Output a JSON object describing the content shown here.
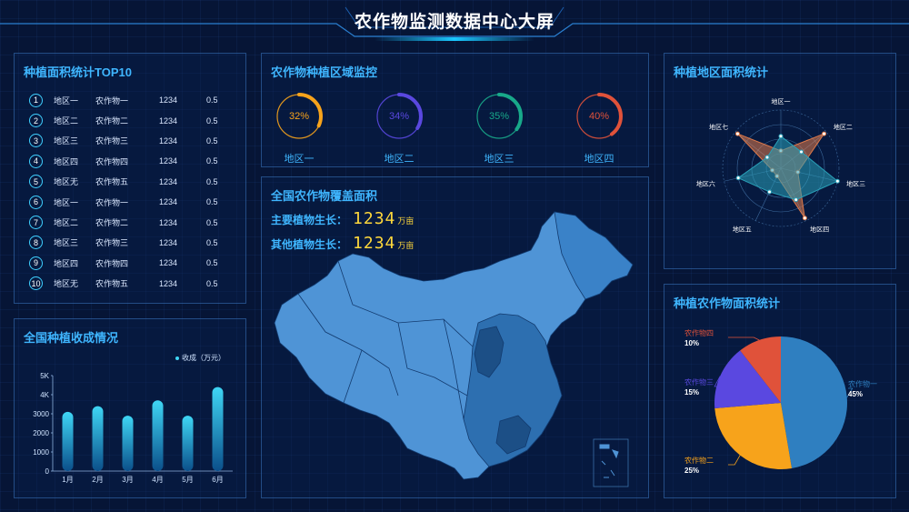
{
  "header": {
    "title": "农作物监测数据中心大屏"
  },
  "top10": {
    "title": "种植面积统计TOP10",
    "rows": [
      {
        "rank": "1",
        "region": "地区一",
        "crop": "农作物一",
        "area": "1234",
        "ratio": "0.5"
      },
      {
        "rank": "2",
        "region": "地区二",
        "crop": "农作物二",
        "area": "1234",
        "ratio": "0.5"
      },
      {
        "rank": "3",
        "region": "地区三",
        "crop": "农作物三",
        "area": "1234",
        "ratio": "0.5"
      },
      {
        "rank": "4",
        "region": "地区四",
        "crop": "农作物四",
        "area": "1234",
        "ratio": "0.5"
      },
      {
        "rank": "5",
        "region": "地区无",
        "crop": "农作物五",
        "area": "1234",
        "ratio": "0.5"
      },
      {
        "rank": "6",
        "region": "地区一",
        "crop": "农作物一",
        "area": "1234",
        "ratio": "0.5"
      },
      {
        "rank": "7",
        "region": "地区二",
        "crop": "农作物二",
        "area": "1234",
        "ratio": "0.5"
      },
      {
        "rank": "8",
        "region": "地区三",
        "crop": "农作物三",
        "area": "1234",
        "ratio": "0.5"
      },
      {
        "rank": "9",
        "region": "地区四",
        "crop": "农作物四",
        "area": "1234",
        "ratio": "0.5"
      },
      {
        "rank": "10",
        "region": "地区无",
        "crop": "农作物五",
        "area": "1234",
        "ratio": "0.5"
      }
    ]
  },
  "harvest": {
    "title": "全国种植收成情况",
    "chart_data": {
      "type": "bar",
      "categories": [
        "1月",
        "2月",
        "3月",
        "4月",
        "5月",
        "6月"
      ],
      "series": [
        {
          "name": "收成（万元）",
          "values": [
            3100,
            3400,
            2900,
            3700,
            2900,
            4400
          ]
        }
      ],
      "yticks": [
        "0",
        "1000",
        "2000",
        "3000",
        "4K",
        "5K"
      ],
      "ylim": [
        0,
        5000
      ],
      "legend": "top-right",
      "colors": {
        "bar_top": "#3fd6f5",
        "bar_bottom": "#0b4f8a"
      }
    }
  },
  "regions": {
    "title": "农作物种植区域监控",
    "items": [
      {
        "label": "地区一",
        "pct": "32%",
        "value": 0.32,
        "color": "#f7a31b"
      },
      {
        "label": "地区二",
        "pct": "34%",
        "value": 0.34,
        "color": "#5a48e0"
      },
      {
        "label": "地区三",
        "pct": "35%",
        "value": 0.35,
        "color": "#18a98a"
      },
      {
        "label": "地区四",
        "pct": "40%",
        "value": 0.4,
        "color": "#e0523a"
      }
    ]
  },
  "coverage": {
    "title": "全国农作物覆盖面积",
    "main_label": "主要植物生长：",
    "main_value": "1234",
    "other_label": "其他植物生长：",
    "other_value": "1234",
    "unit": "万亩"
  },
  "radar": {
    "title": "种植地区面积统计",
    "chart_data": {
      "type": "radar",
      "axes": [
        "地区一",
        "地区二",
        "地区三",
        "地区四",
        "地区五",
        "地区六",
        "地区七"
      ],
      "series": [
        {
          "values": [
            0.3,
            0.95,
            0.3,
            0.95,
            0.15,
            0.15,
            0.95
          ],
          "color": "#e07a4a"
        },
        {
          "values": [
            0.55,
            0.45,
            1.0,
            0.6,
            0.45,
            0.75,
            0.3
          ],
          "color": "#2aa0b8"
        }
      ]
    }
  },
  "pie": {
    "title": "种植农作物面积统计",
    "chart_data": {
      "type": "pie",
      "slices": [
        {
          "label": "农作物一",
          "pct": "45%",
          "value": 45,
          "color": "#2f7fc0"
        },
        {
          "label": "农作物二",
          "pct": "25%",
          "value": 25,
          "color": "#f7a31b"
        },
        {
          "label": "农作物三",
          "pct": "15%",
          "value": 15,
          "color": "#5a48e0"
        },
        {
          "label": "农作物四",
          "pct": "10%",
          "value": 10,
          "color": "#e0523a"
        }
      ]
    }
  }
}
